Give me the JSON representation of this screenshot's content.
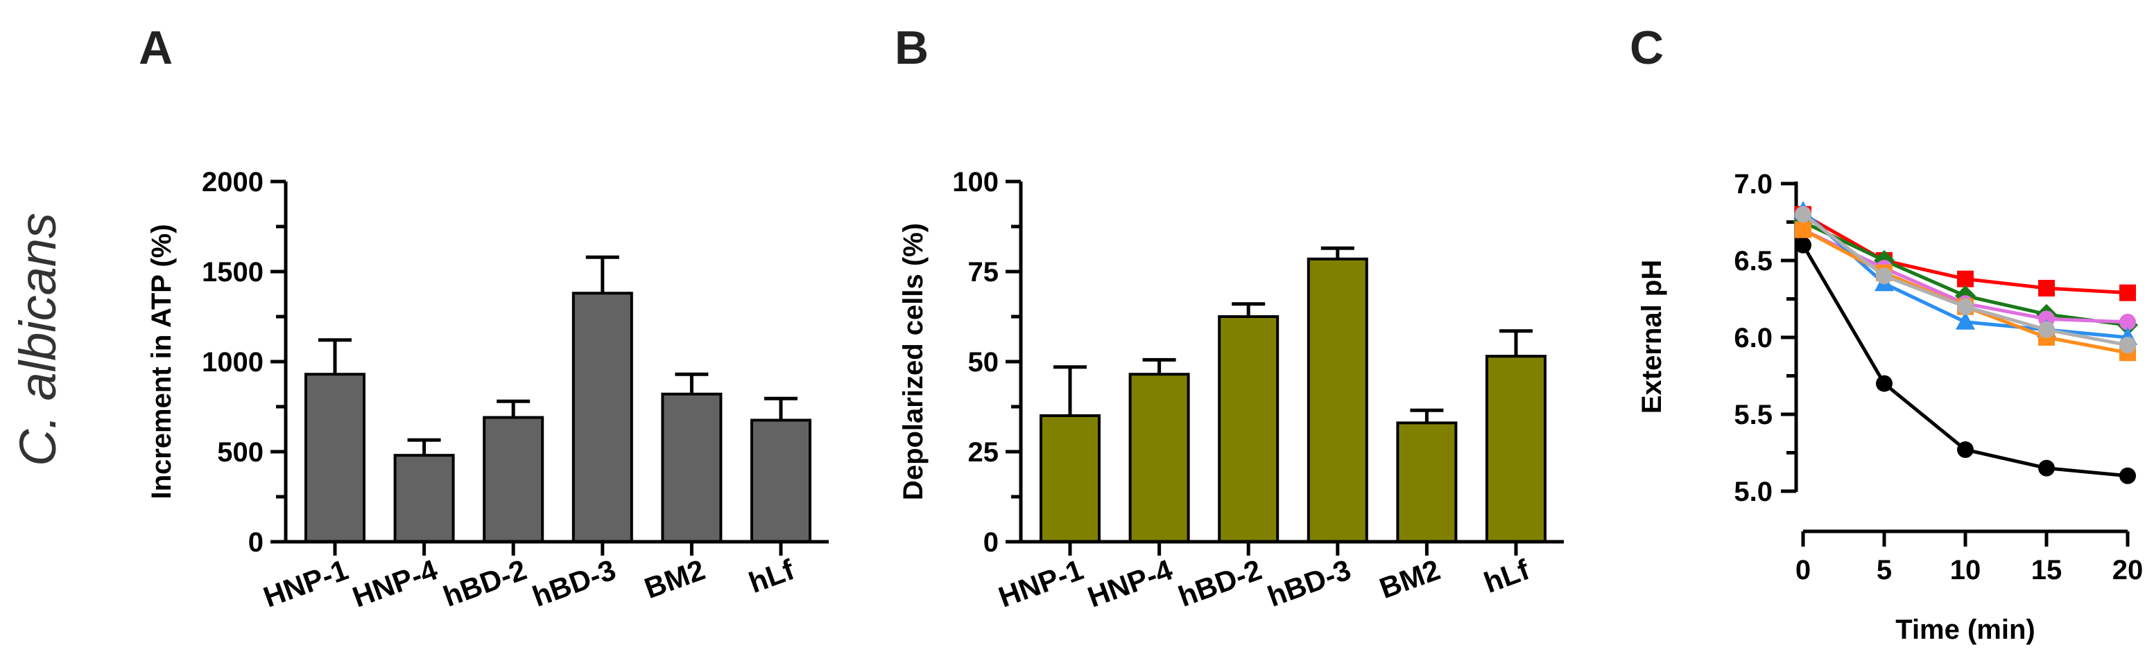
{
  "organism": "C. albicans",
  "panels": {
    "a": "A",
    "b": "B",
    "c": "C"
  },
  "colors": {
    "bar_a": "#636363",
    "bar_b": "#808000",
    "black": "#000000",
    "red": "#ff0000",
    "green": "#1a7a1a",
    "magenta": "#e070e0",
    "blue": "#2b8ff0",
    "orange": "#ff8c1a",
    "gray": "#b0b0b0"
  },
  "chart_data": [
    {
      "id": "A",
      "type": "bar",
      "title": "",
      "xlabel": "",
      "ylabel": "Increment in ATP (%)",
      "categories": [
        "HNP-1",
        "HNP-4",
        "hBD-2",
        "hBD-3",
        "BM2",
        "hLf"
      ],
      "values": [
        930,
        480,
        690,
        1380,
        820,
        675
      ],
      "errors": [
        190,
        85,
        90,
        200,
        110,
        120
      ],
      "ylim": [
        0,
        2000
      ],
      "yticks": [
        "0",
        "500",
        "1000",
        "1500",
        "2000"
      ]
    },
    {
      "id": "B",
      "type": "bar",
      "title": "",
      "xlabel": "",
      "ylabel": "Depolarized cells (%)",
      "categories": [
        "HNP-1",
        "HNP-4",
        "hBD-2",
        "hBD-3",
        "BM2",
        "hLf"
      ],
      "values": [
        35,
        46.5,
        62.5,
        78.5,
        33,
        51.5
      ],
      "errors": [
        13.5,
        4,
        3.5,
        3,
        3.5,
        7
      ],
      "ylim": [
        0,
        100
      ],
      "yticks": [
        "0",
        "25",
        "50",
        "75",
        "100"
      ]
    },
    {
      "id": "C",
      "type": "line",
      "title": "",
      "xlabel": "Time (min)",
      "ylabel": "External pH",
      "x": [
        0,
        5,
        10,
        15,
        20
      ],
      "xticks": [
        "0",
        "5",
        "10",
        "15",
        "20"
      ],
      "xlim": [
        0,
        20
      ],
      "ylim": [
        5.0,
        7.0
      ],
      "yticks": [
        "5.0",
        "5.5",
        "6.0",
        "6.5",
        "7.0"
      ],
      "series": [
        {
          "name": "black",
          "marker": "circle",
          "values": [
            6.6,
            5.7,
            5.27,
            5.15,
            5.1
          ]
        },
        {
          "name": "red",
          "marker": "square",
          "values": [
            6.8,
            6.5,
            6.38,
            6.32,
            6.29
          ]
        },
        {
          "name": "green",
          "marker": "diamond",
          "values": [
            6.75,
            6.5,
            6.27,
            6.15,
            6.08
          ]
        },
        {
          "name": "magenta",
          "marker": "circle",
          "values": [
            6.7,
            6.45,
            6.22,
            6.12,
            6.1
          ]
        },
        {
          "name": "blue",
          "marker": "triangle",
          "values": [
            6.82,
            6.35,
            6.1,
            6.05,
            6.0
          ]
        },
        {
          "name": "orange",
          "marker": "square",
          "values": [
            6.7,
            6.42,
            6.2,
            6.0,
            5.9
          ]
        },
        {
          "name": "gray",
          "marker": "circle",
          "values": [
            6.8,
            6.4,
            6.2,
            6.05,
            5.95
          ]
        }
      ]
    }
  ]
}
